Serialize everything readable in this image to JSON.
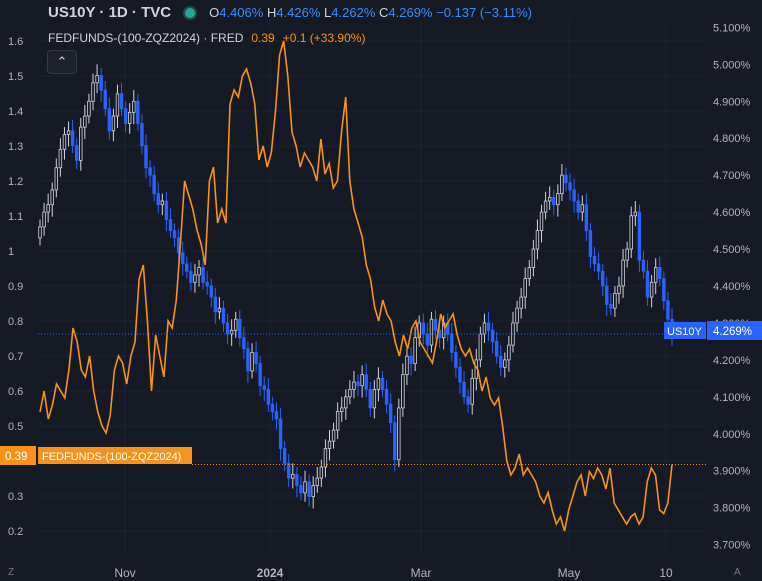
{
  "legend": {
    "symbol": "US10Y · 1D · TVC",
    "o_label": "O",
    "o_value": "4.406%",
    "h_label": "H",
    "h_value": "4.426%",
    "l_label": "L",
    "l_value": "4.262%",
    "c_label": "C",
    "c_value": "4.269%",
    "change": "−0.137 (−3.11%)",
    "fed_symbol": "FEDFUNDS-(100-ZQZ2024) · FRED",
    "fed_value": "0.39",
    "fed_change": "+0.1 (+33.90%)",
    "collapse_icon": "chevron-up-icon"
  },
  "markers": {
    "us10y_tag": "US10Y",
    "us10y_value": "4.269%",
    "fed_value": "0.39",
    "fed_tag": "FEDFUNDS-(100-ZQZ2024)"
  },
  "bottom": {
    "left_icon": "Z",
    "right_icon": "A"
  },
  "colors": {
    "up": "#d1d4dc",
    "down": "#2962ff",
    "fed": "#f7931a",
    "background": "#161a25"
  },
  "chart_data": {
    "type": "line",
    "x_ticks": [
      "Nov",
      "2024",
      "Mar",
      "May",
      "10"
    ],
    "left_axis": {
      "ticks": [
        "1.6",
        "1.5",
        "1.4",
        "1.3",
        "1.2",
        "1.1",
        "1",
        "0.9",
        "0.8",
        "0.7",
        "0.6",
        "0.5",
        "0.4",
        "0.3",
        "0.2"
      ],
      "range": [
        0.14,
        1.66
      ]
    },
    "right_axis": {
      "ticks": [
        "5.100%",
        "5.000%",
        "4.900%",
        "4.800%",
        "4.700%",
        "4.600%",
        "4.500%",
        "4.400%",
        "4.300%",
        "4.200%",
        "4.100%",
        "4.000%",
        "3.900%",
        "3.800%",
        "3.700%"
      ],
      "range": [
        3.68,
        5.12
      ]
    },
    "series": [
      {
        "name": "US10Y",
        "kind": "candles",
        "close": [
          4.56,
          4.6,
          4.62,
          4.66,
          4.72,
          4.77,
          4.81,
          4.82,
          4.78,
          4.74,
          4.83,
          4.86,
          4.9,
          4.95,
          4.97,
          4.93,
          4.88,
          4.82,
          4.86,
          4.92,
          4.88,
          4.84,
          4.87,
          4.9,
          4.84,
          4.78,
          4.72,
          4.7,
          4.65,
          4.62,
          4.63,
          4.58,
          4.55,
          4.53,
          4.49,
          4.46,
          4.44,
          4.41,
          4.43,
          4.45,
          4.41,
          4.4,
          4.37,
          4.33,
          4.34,
          4.3,
          4.27,
          4.28,
          4.31,
          4.26,
          4.23,
          4.17,
          4.22,
          4.19,
          4.13,
          4.12,
          4.08,
          4.06,
          4.04,
          3.96,
          3.92,
          3.88,
          3.89,
          3.86,
          3.84,
          3.87,
          3.83,
          3.86,
          3.88,
          3.91,
          3.96,
          3.98,
          4.01,
          4.06,
          4.07,
          4.1,
          4.12,
          4.14,
          4.13,
          4.16,
          4.12,
          4.07,
          4.12,
          4.15,
          4.12,
          4.08,
          4.03,
          3.93,
          4.07,
          4.16,
          4.21,
          4.19,
          4.26,
          4.3,
          4.27,
          4.24,
          4.31,
          4.28,
          4.26,
          4.3,
          4.27,
          4.22,
          4.18,
          4.14,
          4.1,
          4.08,
          4.15,
          4.2,
          4.27,
          4.3,
          4.28,
          4.25,
          4.21,
          4.18,
          4.2,
          4.24,
          4.3,
          4.34,
          4.37,
          4.42,
          4.45,
          4.5,
          4.55,
          4.6,
          4.63,
          4.64,
          4.62,
          4.65,
          4.7,
          4.68,
          4.66,
          4.63,
          4.6,
          4.62,
          4.55,
          4.48,
          4.46,
          4.44,
          4.4,
          4.35,
          4.34,
          4.38,
          4.4,
          4.47,
          4.5,
          4.59,
          4.6,
          4.47,
          4.44,
          4.37,
          4.41,
          4.45,
          4.42,
          4.36,
          4.31,
          4.27
        ]
      },
      {
        "name": "FEDFUNDS-(100-ZQZ2024)",
        "kind": "line",
        "values": [
          0.54,
          0.6,
          0.52,
          0.56,
          0.62,
          0.6,
          0.58,
          0.66,
          0.78,
          0.74,
          0.66,
          0.64,
          0.7,
          0.6,
          0.54,
          0.5,
          0.48,
          0.53,
          0.66,
          0.7,
          0.68,
          0.62,
          0.7,
          0.74,
          0.92,
          0.96,
          0.8,
          0.6,
          0.76,
          0.7,
          0.64,
          0.8,
          0.78,
          0.86,
          1.02,
          1.2,
          1.16,
          1.12,
          1.06,
          1.02,
          0.96,
          1.2,
          1.24,
          1.08,
          1.12,
          1.08,
          1.42,
          1.46,
          1.44,
          1.5,
          1.52,
          1.48,
          1.42,
          1.26,
          1.3,
          1.24,
          1.28,
          1.4,
          1.56,
          1.6,
          1.5,
          1.34,
          1.3,
          1.24,
          1.28,
          1.26,
          1.24,
          1.2,
          1.32,
          1.22,
          1.25,
          1.18,
          1.2,
          1.34,
          1.44,
          1.2,
          1.12,
          1.08,
          1.04,
          0.96,
          0.92,
          0.84,
          0.8,
          0.86,
          0.82,
          0.8,
          0.74,
          0.7,
          0.76,
          0.72,
          0.78,
          0.8,
          0.74,
          0.72,
          0.7,
          0.68,
          0.74,
          0.82,
          0.78,
          0.8,
          0.82,
          0.76,
          0.72,
          0.7,
          0.72,
          0.68,
          0.66,
          0.6,
          0.64,
          0.58,
          0.56,
          0.58,
          0.5,
          0.4,
          0.36,
          0.38,
          0.42,
          0.36,
          0.38,
          0.36,
          0.34,
          0.3,
          0.28,
          0.31,
          0.26,
          0.22,
          0.24,
          0.2,
          0.26,
          0.3,
          0.34,
          0.36,
          0.3,
          0.37,
          0.35,
          0.38,
          0.36,
          0.32,
          0.38,
          0.28,
          0.26,
          0.24,
          0.22,
          0.24,
          0.25,
          0.22,
          0.24,
          0.34,
          0.38,
          0.36,
          0.26,
          0.25,
          0.28,
          0.39
        ]
      }
    ]
  }
}
